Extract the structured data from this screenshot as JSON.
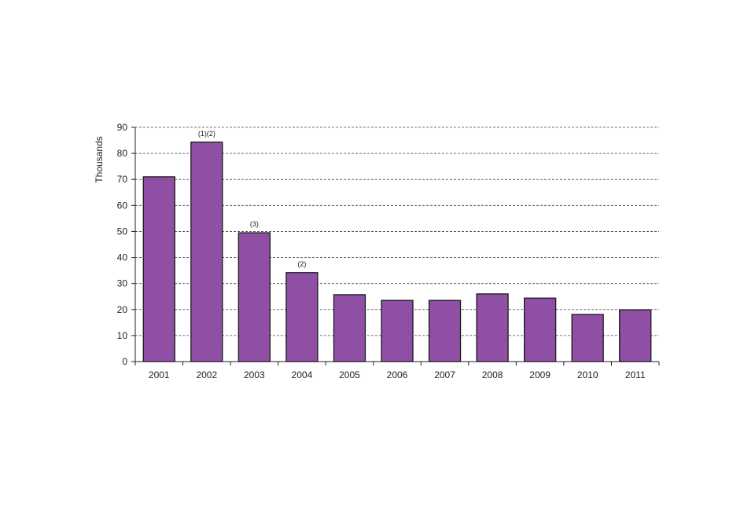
{
  "chart_data": {
    "type": "bar",
    "title": "",
    "xlabel": "",
    "ylabel": "Thousands",
    "ylim": [
      0,
      90
    ],
    "yticks": [
      0,
      10,
      20,
      30,
      40,
      50,
      60,
      70,
      80,
      90
    ],
    "grid": "horizontal-dashed",
    "legend": "none",
    "bar_color": "#8e4fa5",
    "bar_edge_color": "#1a1a1a",
    "categories": [
      "2001",
      "2002",
      "2003",
      "2004",
      "2005",
      "2006",
      "2007",
      "2008",
      "2009",
      "2010",
      "2011"
    ],
    "values": [
      71,
      84.3,
      49.5,
      34.2,
      25.7,
      23.5,
      23.5,
      26.0,
      24.4,
      18.1,
      19.9
    ],
    "annotations": [
      {
        "category": "2002",
        "text": "(1)(2)"
      },
      {
        "category": "2003",
        "text": "(3)"
      },
      {
        "category": "2004",
        "text": "(2)"
      }
    ]
  }
}
